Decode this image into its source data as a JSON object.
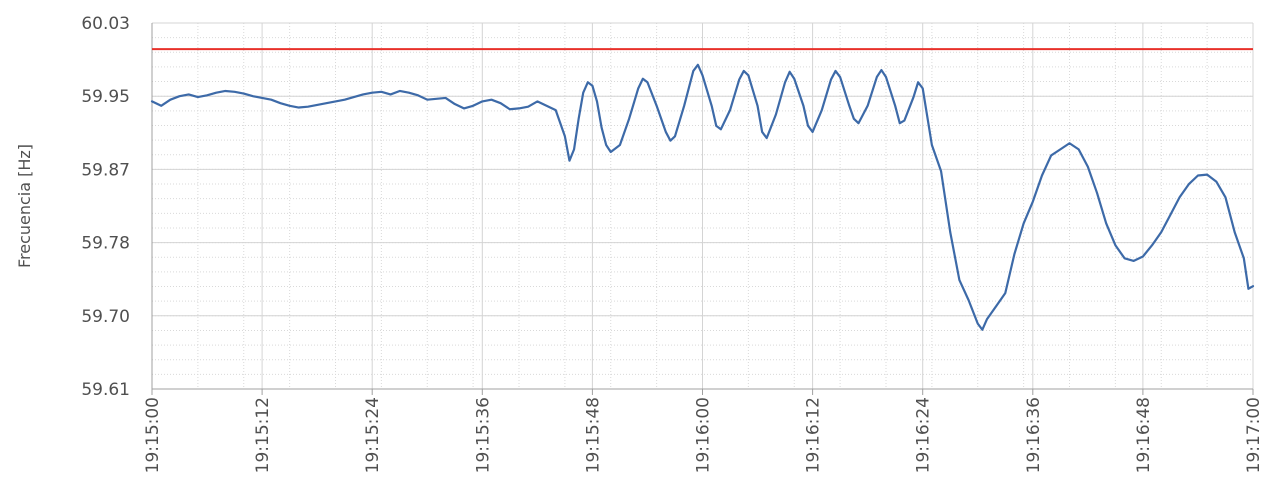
{
  "chart_data": {
    "type": "line",
    "title": "",
    "xlabel": "",
    "ylabel": "Frecuencia [Hz]",
    "xlim": [
      "19:15:00",
      "19:17:00"
    ],
    "ylim": [
      59.61,
      60.03
    ],
    "x_ticks": [
      "19:15:00",
      "19:15:12",
      "19:15:24",
      "19:15:36",
      "19:15:48",
      "19:16:00",
      "19:16:12",
      "19:16:24",
      "19:16:36",
      "19:16:48",
      "19:17:00"
    ],
    "y_ticks": [
      "59.61",
      "59.70",
      "59.78",
      "59.87",
      "59.95",
      "60.03"
    ],
    "grid": "major and minor, dotted",
    "legend": "none",
    "reference_line": {
      "value": 60.0,
      "color": "#e8302a"
    },
    "series": [
      {
        "color": "#3d6aa8",
        "points": [
          [
            "19:15:00",
            59.94
          ],
          [
            "19:15:01",
            59.935
          ],
          [
            "19:15:02",
            59.942
          ],
          [
            "19:15:03",
            59.946
          ],
          [
            "19:15:04",
            59.948
          ],
          [
            "19:15:05",
            59.945
          ],
          [
            "19:15:06",
            59.947
          ],
          [
            "19:15:07",
            59.95
          ],
          [
            "19:15:08",
            59.952
          ],
          [
            "19:15:09",
            59.951
          ],
          [
            "19:15:10",
            59.949
          ],
          [
            "19:15:11",
            59.946
          ],
          [
            "19:15:12",
            59.944
          ],
          [
            "19:15:13",
            59.942
          ],
          [
            "19:15:14",
            59.938
          ],
          [
            "19:15:15",
            59.935
          ],
          [
            "19:15:16",
            59.933
          ],
          [
            "19:15:17",
            59.934
          ],
          [
            "19:15:18",
            59.936
          ],
          [
            "19:15:19",
            59.938
          ],
          [
            "19:15:20",
            59.94
          ],
          [
            "19:15:21",
            59.942
          ],
          [
            "19:15:22",
            59.945
          ],
          [
            "19:15:23",
            59.948
          ],
          [
            "19:15:24",
            59.95
          ],
          [
            "19:15:25",
            59.951
          ],
          [
            "19:15:26",
            59.948
          ],
          [
            "19:15:27",
            59.952
          ],
          [
            "19:15:28",
            59.95
          ],
          [
            "19:15:29",
            59.947
          ],
          [
            "19:15:30",
            59.942
          ],
          [
            "19:15:31",
            59.943
          ],
          [
            "19:15:32",
            59.944
          ],
          [
            "19:15:33",
            59.937
          ],
          [
            "19:15:34",
            59.932
          ],
          [
            "19:15:35",
            59.935
          ],
          [
            "19:15:36",
            59.94
          ],
          [
            "19:15:37",
            59.942
          ],
          [
            "19:15:38",
            59.938
          ],
          [
            "19:15:39",
            59.931
          ],
          [
            "19:15:40",
            59.932
          ],
          [
            "19:15:41",
            59.934
          ],
          [
            "19:15:42",
            59.94
          ],
          [
            "19:15:43",
            59.935
          ],
          [
            "19:15:44",
            59.93
          ],
          [
            "19:15:45",
            59.9
          ],
          [
            "19:15:45.5",
            59.872
          ],
          [
            "19:15:46",
            59.885
          ],
          [
            "19:15:46.5",
            59.92
          ],
          [
            "19:15:47",
            59.95
          ],
          [
            "19:15:47.5",
            59.962
          ],
          [
            "19:15:48",
            59.958
          ],
          [
            "19:15:48.5",
            59.94
          ],
          [
            "19:15:49",
            59.91
          ],
          [
            "19:15:49.5",
            59.89
          ],
          [
            "19:15:50",
            59.882
          ],
          [
            "19:15:51",
            59.89
          ],
          [
            "19:15:52",
            59.92
          ],
          [
            "19:15:53",
            59.955
          ],
          [
            "19:15:53.5",
            59.966
          ],
          [
            "19:15:54",
            59.962
          ],
          [
            "19:15:55",
            59.935
          ],
          [
            "19:15:56",
            59.905
          ],
          [
            "19:15:56.5",
            59.895
          ],
          [
            "19:15:57",
            59.9
          ],
          [
            "19:15:58",
            59.935
          ],
          [
            "19:15:59",
            59.975
          ],
          [
            "19:15:59.5",
            59.982
          ],
          [
            "19:16:00",
            59.97
          ],
          [
            "19:16:01",
            59.935
          ],
          [
            "19:16:01.5",
            59.912
          ],
          [
            "19:16:02",
            59.908
          ],
          [
            "19:16:03",
            59.93
          ],
          [
            "19:16:04",
            59.965
          ],
          [
            "19:16:04.5",
            59.975
          ],
          [
            "19:16:05",
            59.97
          ],
          [
            "19:16:06",
            59.935
          ],
          [
            "19:16:06.5",
            59.905
          ],
          [
            "19:16:07",
            59.898
          ],
          [
            "19:16:08",
            59.925
          ],
          [
            "19:16:09",
            59.962
          ],
          [
            "19:16:09.5",
            59.974
          ],
          [
            "19:16:10",
            59.966
          ],
          [
            "19:16:11",
            59.935
          ],
          [
            "19:16:11.5",
            59.912
          ],
          [
            "19:16:12",
            59.905
          ],
          [
            "19:16:13",
            59.93
          ],
          [
            "19:16:14",
            59.965
          ],
          [
            "19:16:14.5",
            59.975
          ],
          [
            "19:16:15",
            59.968
          ],
          [
            "19:16:16",
            59.935
          ],
          [
            "19:16:16.5",
            59.92
          ],
          [
            "19:16:17",
            59.915
          ],
          [
            "19:16:18",
            59.935
          ],
          [
            "19:16:19",
            59.968
          ],
          [
            "19:16:19.5",
            59.976
          ],
          [
            "19:16:20",
            59.968
          ],
          [
            "19:16:21",
            59.935
          ],
          [
            "19:16:21.5",
            59.915
          ],
          [
            "19:16:22",
            59.918
          ],
          [
            "19:16:23",
            59.945
          ],
          [
            "19:16:23.5",
            59.962
          ],
          [
            "19:16:24",
            59.955
          ],
          [
            "19:16:25",
            59.89
          ],
          [
            "19:16:26",
            59.86
          ],
          [
            "19:16:27",
            59.79
          ],
          [
            "19:16:28",
            59.735
          ],
          [
            "19:16:29",
            59.712
          ],
          [
            "19:16:30",
            59.685
          ],
          [
            "19:16:30.5",
            59.678
          ],
          [
            "19:16:31",
            59.69
          ],
          [
            "19:16:32",
            59.705
          ],
          [
            "19:16:33",
            59.72
          ],
          [
            "19:16:34",
            59.765
          ],
          [
            "19:16:35",
            59.8
          ],
          [
            "19:16:36",
            59.825
          ],
          [
            "19:16:37",
            59.855
          ],
          [
            "19:16:38",
            59.878
          ],
          [
            "19:16:39",
            59.885
          ],
          [
            "19:16:40",
            59.892
          ],
          [
            "19:16:41",
            59.885
          ],
          [
            "19:16:42",
            59.865
          ],
          [
            "19:16:43",
            59.835
          ],
          [
            "19:16:44",
            59.8
          ],
          [
            "19:16:45",
            59.775
          ],
          [
            "19:16:46",
            59.76
          ],
          [
            "19:16:47",
            59.757
          ],
          [
            "19:16:48",
            59.762
          ],
          [
            "19:16:49",
            59.775
          ],
          [
            "19:16:50",
            59.79
          ],
          [
            "19:16:51",
            59.81
          ],
          [
            "19:16:52",
            59.83
          ],
          [
            "19:16:53",
            59.845
          ],
          [
            "19:16:54",
            59.855
          ],
          [
            "19:16:55",
            59.856
          ],
          [
            "19:16:56",
            59.848
          ],
          [
            "19:16:57",
            59.83
          ],
          [
            "19:16:58",
            59.79
          ],
          [
            "19:16:59",
            59.76
          ],
          [
            "19:16:59.5",
            59.725
          ],
          [
            "19:17:00",
            59.728
          ]
        ]
      }
    ]
  }
}
